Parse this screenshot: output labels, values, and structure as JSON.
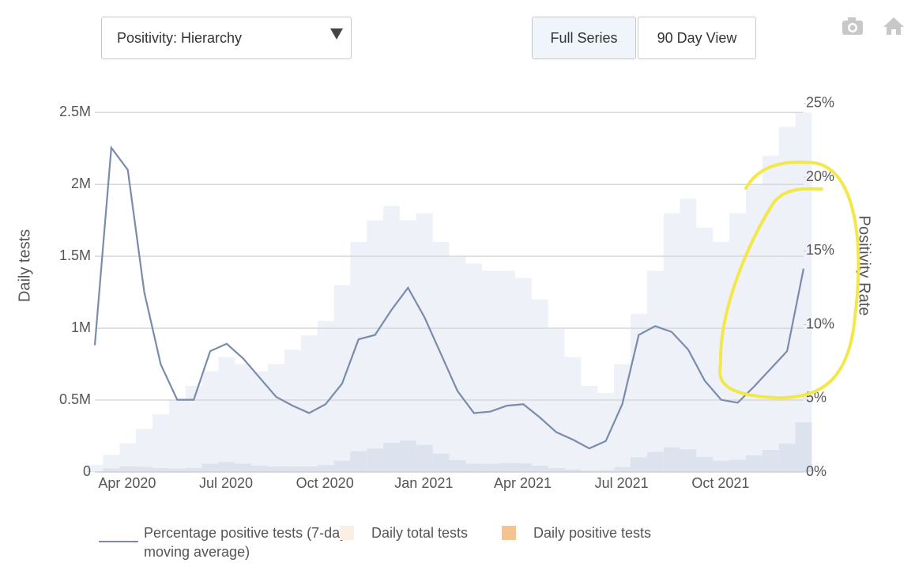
{
  "controls": {
    "dropdown": "Positivity: Hierarchy",
    "buttons": [
      "Full Series",
      "90 Day View"
    ]
  },
  "chart_data": {
    "type": "bar",
    "ylabel": "Daily tests",
    "y2label": "Positivity Rate",
    "categories": [
      null,
      "Apr 2020",
      null,
      null,
      null,
      null,
      null,
      "Jul 2020",
      null,
      null,
      null,
      null,
      null,
      "Oct 2020",
      null,
      null,
      null,
      null,
      null,
      "Jan 2021",
      null,
      null,
      null,
      null,
      null,
      "Apr 2021",
      null,
      null,
      null,
      null,
      null,
      "Jul 2021",
      null,
      null,
      null,
      null,
      null,
      "Oct 2021",
      null,
      null,
      null,
      null,
      null,
      null
    ],
    "ylim": [
      0,
      2870000
    ],
    "yticks": [
      0,
      {
        "value": 500000,
        "label": "0.5M"
      },
      {
        "value": 1000000,
        "label": "1M"
      },
      {
        "value": 1500000,
        "label": "1.5M"
      },
      {
        "value": 2000000,
        "label": "2M"
      },
      {
        "value": 2500000,
        "label": "2.5M"
      }
    ],
    "y2lim": [
      0,
      28
    ],
    "y2ticks": [
      {
        "value": 0,
        "label": "0%"
      },
      {
        "value": 5,
        "label": "5%"
      },
      {
        "value": 10,
        "label": "10%"
      },
      {
        "value": 15,
        "label": "15%"
      },
      {
        "value": 20,
        "label": "20%"
      },
      {
        "value": 25,
        "label": "25%"
      }
    ],
    "grid": true,
    "series": [
      {
        "name": "Percentage positive tests (7-day moving average)",
        "type": "line",
        "axis": "y2",
        "color": "#7a8bab",
        "values": [
          8.6,
          22,
          20.5,
          12.2,
          7.3,
          4.9,
          4.9,
          8.2,
          8.7,
          7.7,
          6.4,
          5.1,
          4.5,
          4.0,
          4.6,
          6.0,
          9.0,
          9.3,
          11,
          12.5,
          10.5,
          8,
          5.5,
          4.0,
          4.1,
          4.5,
          4.6,
          3.7,
          2.7,
          2.2,
          1.6,
          2.1,
          4.6,
          9.3,
          9.9,
          9.5,
          8.3,
          6.2,
          4.9,
          4.7,
          5.8,
          7,
          8.2,
          13.8
        ]
      },
      {
        "name": "Daily total tests",
        "type": "bar",
        "color": "#eef1f8",
        "legend_color": "#fbeee2",
        "values": [
          50000,
          120000,
          200000,
          300000,
          400000,
          500000,
          600000,
          700000,
          800000,
          750000,
          700000,
          750000,
          850000,
          950000,
          1050000,
          1300000,
          1600000,
          1750000,
          1850000,
          1750000,
          1800000,
          1600000,
          1500000,
          1450000,
          1400000,
          1400000,
          1350000,
          1200000,
          1000000,
          800000,
          600000,
          550000,
          750000,
          1100000,
          1400000,
          1800000,
          1900000,
          1700000,
          1600000,
          1800000,
          2000000,
          2200000,
          2400000,
          2500000
        ]
      },
      {
        "name": "Daily positive tests",
        "type": "bar",
        "color": "#dde3ee",
        "legend_color": "#f4c38f",
        "values": [
          4000,
          25000,
          40000,
          36000,
          28000,
          24000,
          28000,
          57000,
          70000,
          58000,
          45000,
          38000,
          38000,
          38000,
          48000,
          78000,
          144000,
          163000,
          204000,
          219000,
          189000,
          128000,
          83000,
          58000,
          57000,
          63000,
          62000,
          44000,
          27000,
          18000,
          10000,
          12000,
          35000,
          102000,
          139000,
          171000,
          158000,
          105000,
          78000,
          85000,
          116000,
          154000,
          197000,
          345000
        ]
      }
    ]
  }
}
